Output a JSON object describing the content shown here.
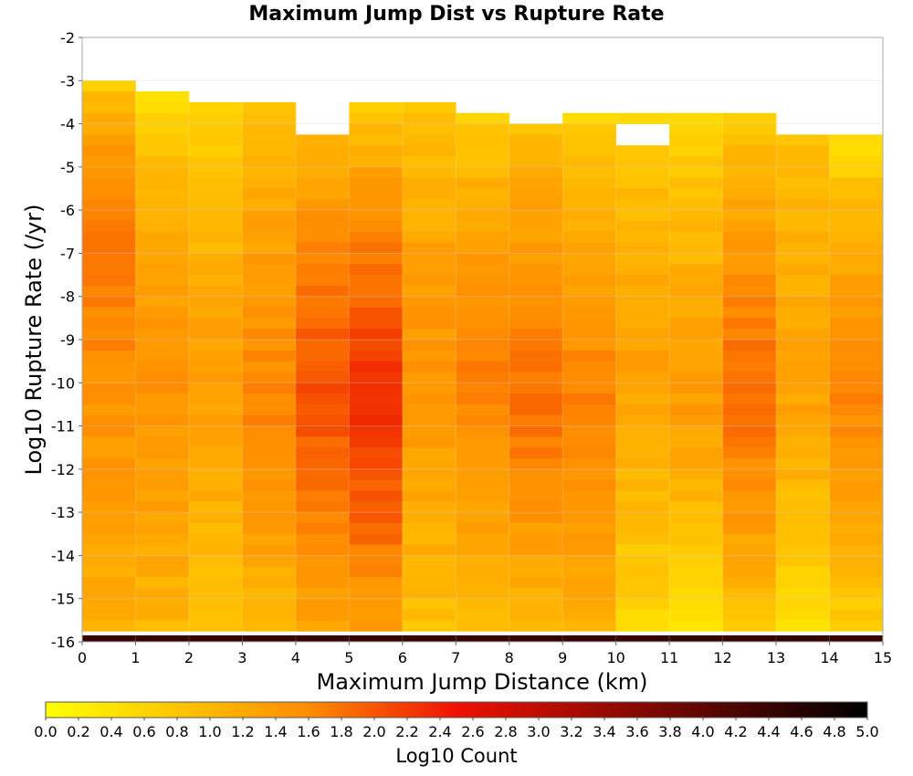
{
  "chart_data": {
    "type": "heatmap",
    "title": "Maximum Jump Dist vs Rupture Rate",
    "xlabel": "Maximum Jump Distance (km)",
    "ylabel": "Log10 Rupture Rate (/yr)",
    "colorbar_label": "Log10 Count",
    "xlim": [
      0,
      15
    ],
    "ylim": [
      -16,
      -2
    ],
    "x_ticks": [
      "0",
      "1",
      "2",
      "3",
      "4",
      "5",
      "6",
      "7",
      "8",
      "9",
      "10",
      "11",
      "12",
      "13",
      "14",
      "15"
    ],
    "y_ticks": [
      "-2",
      "-3",
      "-4",
      "-5",
      "-6",
      "-7",
      "-8",
      "-9",
      "-10",
      "-11",
      "-12",
      "-13",
      "-14",
      "-15",
      "-16"
    ],
    "color_range": [
      0.0,
      5.0
    ],
    "colorbar_ticks": [
      "0.0",
      "0.2",
      "0.4",
      "0.6",
      "0.8",
      "1.0",
      "1.2",
      "1.4",
      "1.6",
      "1.8",
      "2.0",
      "2.2",
      "2.4",
      "2.6",
      "2.8",
      "3.0",
      "3.2",
      "3.4",
      "3.6",
      "3.8",
      "4.0",
      "4.2",
      "4.4",
      "4.6",
      "4.8",
      "5.0"
    ],
    "colormap": [
      "#ffff00",
      "#ff8c00",
      "#ee1100",
      "#000000"
    ],
    "grid": true,
    "x_bin_width": 1,
    "y_bin_height": 0.25,
    "note_values_estimated": true,
    "columns": [
      {
        "x0": 0,
        "ymax": -3.0,
        "top": 0.6,
        "bottom": 1.1,
        "peak_y": -6.0,
        "peak_v": 1.75
      },
      {
        "x0": 1,
        "ymax": -3.25,
        "top": 0.35,
        "bottom": 1.0,
        "peak_y": -9.5,
        "peak_v": 1.55
      },
      {
        "x0": 2,
        "ymax": -3.5,
        "top": 0.45,
        "bottom": 0.75,
        "peak_y": -10.0,
        "peak_v": 1.35
      },
      {
        "x0": 3,
        "ymax": -3.5,
        "top": 0.7,
        "bottom": 0.95,
        "peak_y": -10.5,
        "peak_v": 1.65
      },
      {
        "x0": 4,
        "ymax": -4.25,
        "top": 0.85,
        "bottom": 1.25,
        "peak_y": -10.0,
        "peak_v": 2.05
      },
      {
        "x0": 5,
        "ymax": -3.5,
        "top": 0.5,
        "bottom": 1.3,
        "peak_y": -10.3,
        "peak_v": 2.3
      },
      {
        "x0": 6,
        "ymax": -3.5,
        "top": 0.65,
        "bottom": 0.85,
        "peak_y": -9.5,
        "peak_v": 1.5
      },
      {
        "x0": 7,
        "ymax": -3.75,
        "top": 0.5,
        "bottom": 0.9,
        "peak_y": -9.5,
        "peak_v": 1.7
      },
      {
        "x0": 8,
        "ymax": -4.0,
        "top": 0.75,
        "bottom": 0.95,
        "peak_y": -10.5,
        "peak_v": 1.8
      },
      {
        "x0": 9,
        "ymax": -3.75,
        "top": 0.45,
        "bottom": 1.05,
        "peak_y": -10.5,
        "peak_v": 1.7
      },
      {
        "x0": 10,
        "ymax": -3.75,
        "top": 0.55,
        "bottom": 0.55,
        "peak_y": -9.0,
        "peak_v": 1.3
      },
      {
        "x0": 11,
        "ymax": -3.75,
        "top": 0.35,
        "bottom": 0.4,
        "peak_y": -10.0,
        "peak_v": 1.4
      },
      {
        "x0": 12,
        "ymax": -3.75,
        "top": 0.55,
        "bottom": 0.8,
        "peak_y": -10.0,
        "peak_v": 1.85
      },
      {
        "x0": 13,
        "ymax": -4.25,
        "top": 0.75,
        "bottom": 0.45,
        "peak_y": -10.0,
        "peak_v": 1.3
      },
      {
        "x0": 14,
        "ymax": -4.25,
        "top": 0.3,
        "bottom": 0.65,
        "peak_y": -10.0,
        "peak_v": 1.65
      }
    ],
    "missing_cells": [
      {
        "x0": 10,
        "y": -4.25
      }
    ],
    "bottom_row": {
      "y_bottom": -16,
      "y_top": -15.85,
      "values": [
        4.45,
        4.45,
        4.45,
        4.45,
        4.45,
        4.45,
        4.45,
        4.45,
        4.45,
        4.45,
        4.45,
        4.45,
        4.45,
        4.45,
        4.45
      ]
    }
  }
}
